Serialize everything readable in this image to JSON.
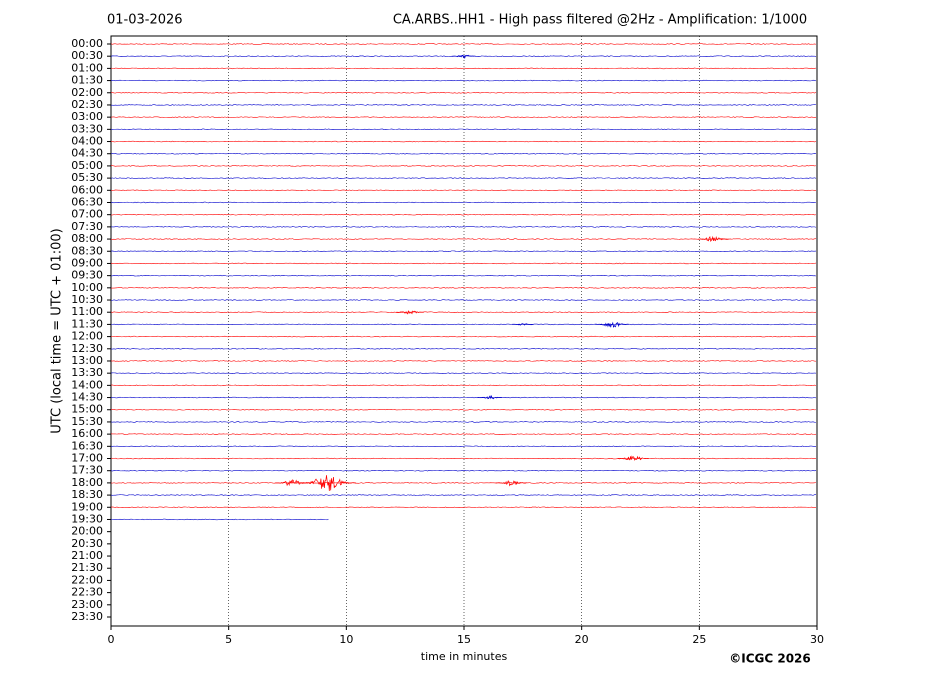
{
  "chart_data": {
    "type": "helicorder",
    "date": "01-03-2026",
    "title": "CA.ARBS..HH1 - High pass filtered @2Hz - Amplification: 1/1000",
    "ylabel": "UTC (local time = UTC + 01:00)",
    "xlabel": "time in minutes",
    "credit": "©ICGC 2026",
    "xlim": [
      0,
      30
    ],
    "xticks": [
      0,
      5,
      10,
      15,
      20,
      25,
      30
    ],
    "grid": true,
    "colors": [
      "#ff0000",
      "#0000cc"
    ],
    "categories": [
      "00:00",
      "00:30",
      "01:00",
      "01:30",
      "02:00",
      "02:30",
      "03:00",
      "03:30",
      "04:00",
      "04:30",
      "05:00",
      "05:30",
      "06:00",
      "06:30",
      "07:00",
      "07:30",
      "08:00",
      "08:30",
      "09:00",
      "09:30",
      "10:00",
      "10:30",
      "11:00",
      "11:30",
      "12:00",
      "12:30",
      "13:00",
      "13:30",
      "14:00",
      "14:30",
      "15:00",
      "15:30",
      "16:00",
      "16:30",
      "17:00",
      "17:30",
      "18:00",
      "18:30",
      "19:00",
      "19:30",
      "20:00",
      "20:30",
      "21:00",
      "21:30",
      "22:00",
      "22:30",
      "23:00",
      "23:30"
    ],
    "trace_end": [
      30,
      30,
      30,
      30,
      30,
      30,
      30,
      30,
      30,
      30,
      30,
      30,
      30,
      30,
      30,
      30,
      30,
      30,
      30,
      30,
      30,
      30,
      30,
      30,
      30,
      30,
      30,
      30,
      30,
      30,
      30,
      30,
      30,
      30,
      30,
      30,
      30,
      30,
      30,
      9.3,
      null,
      null,
      null,
      null,
      null,
      null,
      null,
      null
    ],
    "events": [
      {
        "row": 1,
        "x": 15.0,
        "amplitude": 0.15
      },
      {
        "row": 16,
        "x": 25.6,
        "amplitude": 0.25
      },
      {
        "row": 22,
        "x": 12.7,
        "amplitude": 0.2
      },
      {
        "row": 23,
        "x": 17.5,
        "amplitude": 0.1
      },
      {
        "row": 23,
        "x": 21.3,
        "amplitude": 0.3
      },
      {
        "row": 29,
        "x": 16.1,
        "amplitude": 0.15
      },
      {
        "row": 34,
        "x": 22.2,
        "amplitude": 0.25
      },
      {
        "row": 36,
        "x": 7.7,
        "amplitude": 0.3
      },
      {
        "row": 36,
        "x": 9.2,
        "amplitude": 0.7
      },
      {
        "row": 36,
        "x": 17.0,
        "amplitude": 0.25
      }
    ]
  }
}
